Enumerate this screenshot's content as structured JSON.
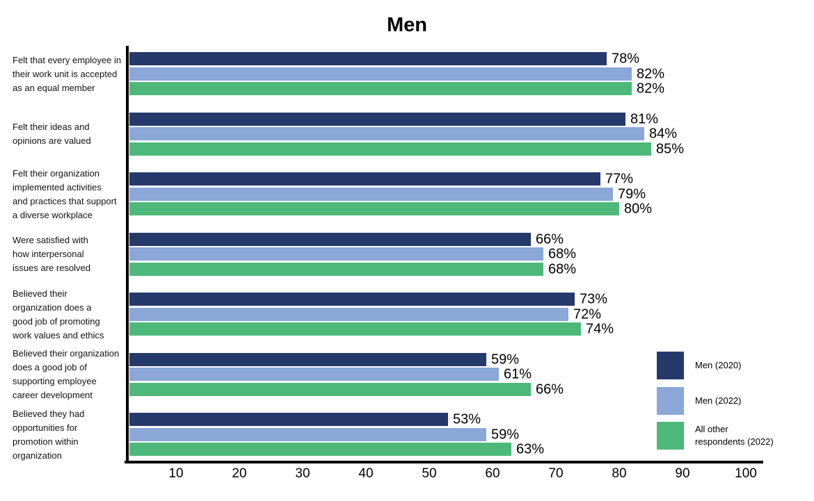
{
  "chart_data": {
    "type": "bar",
    "orientation": "horizontal",
    "title": "Men",
    "categories": [
      "Felt that every employee in\ntheir work unit is accepted\nas an equal member",
      "Felt their ideas and\nopinions are valued",
      "Felt their organization\nimplemented activities\nand practices that support\na diverse workplace",
      "Were satisfied with\nhow interpersonal\nissues are resolved",
      "Believed their\norganization does a\ngood job of promoting\nwork values and ethics",
      "Believed their organization\ndoes a good job of\nsupporting employee\ncareer development",
      "Believed they had\nopportunities for\npromotion within\norganization"
    ],
    "series": [
      {
        "name": "Men (2020)",
        "color": "#26396B",
        "values": [
          78,
          81,
          77,
          66,
          73,
          59,
          53
        ]
      },
      {
        "name": "Men (2022)",
        "color": "#8AA7D8",
        "values": [
          82,
          84,
          79,
          68,
          72,
          61,
          59
        ]
      },
      {
        "name": "All other respondents (2022)",
        "color": "#4DB87A",
        "values": [
          82,
          85,
          80,
          68,
          74,
          66,
          63
        ]
      }
    ],
    "value_suffix": "%",
    "x_ticks": [
      10,
      20,
      30,
      40,
      50,
      60,
      70,
      80,
      90,
      100
    ],
    "xlim": [
      0,
      100
    ],
    "grid": false,
    "legend_position": "inside-right"
  },
  "legend": {
    "items": [
      {
        "label": "Men (2020)",
        "color": "#26396B"
      },
      {
        "label": "Men (2022)",
        "color": "#8AA7D8"
      },
      {
        "label": "All other\nrespondents (2022)",
        "color": "#4DB87A"
      }
    ]
  }
}
